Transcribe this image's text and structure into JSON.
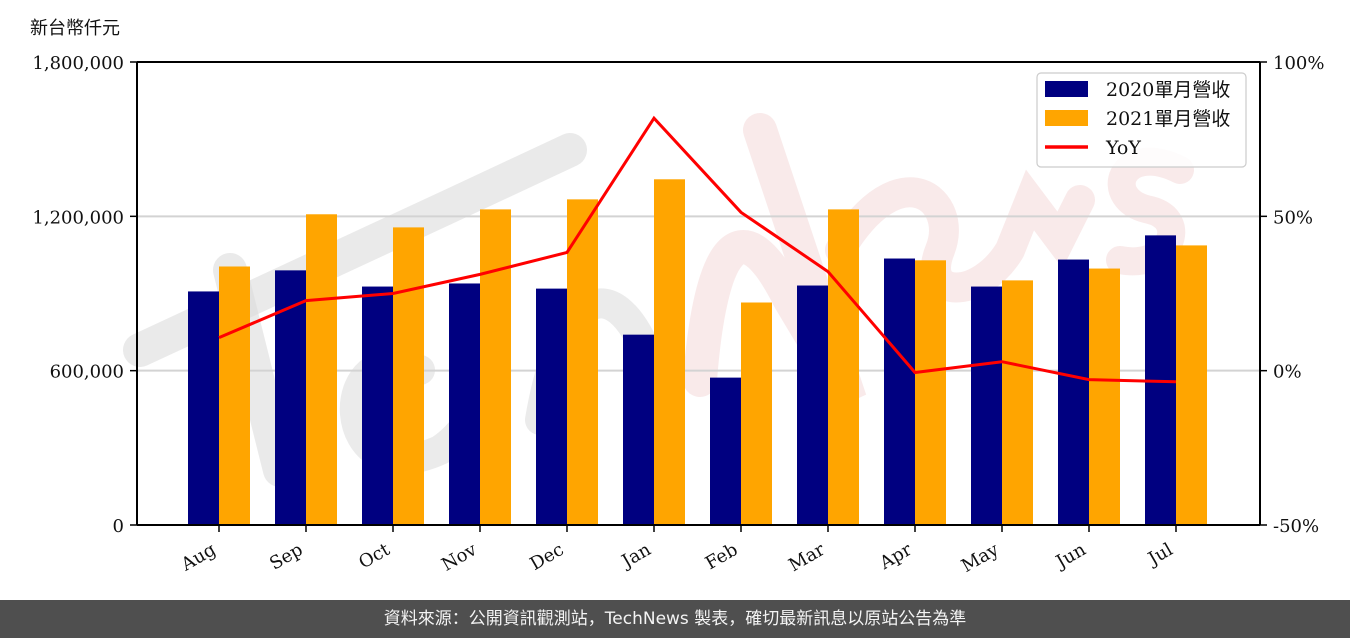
{
  "chart_data": {
    "type": "bar",
    "title": "",
    "ylabel": "新台幣仟元",
    "xlabel": "",
    "categories": [
      "Aug",
      "Sep",
      "Oct",
      "Nov",
      "Dec",
      "Jan",
      "Feb",
      "Mar",
      "Apr",
      "May",
      "Jun",
      "Jul"
    ],
    "series": [
      {
        "name": "2020單月營收",
        "type": "bar",
        "axis": "left",
        "color": "#000080",
        "values": [
          908000,
          990000,
          927000,
          939000,
          919000,
          740000,
          573000,
          931000,
          1036000,
          927000,
          1032000,
          1126000
        ]
      },
      {
        "name": "2021單月營收",
        "type": "bar",
        "axis": "left",
        "color": "#FFA500",
        "values": [
          1005000,
          1208000,
          1157000,
          1227000,
          1266000,
          1344000,
          865000,
          1227000,
          1029000,
          951000,
          997000,
          1087000
        ]
      },
      {
        "name": "YoY",
        "type": "line",
        "axis": "right",
        "color": "#FF0000",
        "unit": "%",
        "values": [
          10.7,
          22.7,
          25.0,
          31.2,
          38.3,
          81.8,
          51.3,
          32.1,
          -0.6,
          2.9,
          -2.9,
          -3.6
        ]
      }
    ],
    "ylim": [
      0,
      1800000
    ],
    "y_ticks": [
      0,
      600000,
      1200000,
      1800000
    ],
    "y_tick_labels": [
      "0",
      "600,000",
      "1,200,000",
      "1,800,000"
    ],
    "y2lim": [
      -50,
      100
    ],
    "y2_ticks": [
      -50,
      0,
      50,
      100
    ],
    "y2_tick_labels": [
      "-50%",
      "0%",
      "50%",
      "100%"
    ],
    "grid": "horizontal",
    "legend_position": "upper right"
  },
  "header": {
    "unit_label": "新台幣仟元"
  },
  "legend": {
    "items": [
      {
        "label": "2020單月營收",
        "color": "#000080",
        "kind": "patch"
      },
      {
        "label": "2021單月營收",
        "color": "#FFA500",
        "kind": "patch"
      },
      {
        "label": "YoY",
        "color": "#FF0000",
        "kind": "line"
      }
    ]
  },
  "watermark": {
    "text": "TechNews"
  },
  "footer": {
    "text": "資料來源：公開資訊觀測站，TechNews 製表，確切最新訊息以原站公告為準"
  }
}
